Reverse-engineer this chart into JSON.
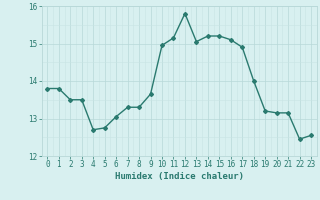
{
  "x": [
    0,
    1,
    2,
    3,
    4,
    5,
    6,
    7,
    8,
    9,
    10,
    11,
    12,
    13,
    14,
    15,
    16,
    17,
    18,
    19,
    20,
    21,
    22,
    23
  ],
  "y": [
    13.8,
    13.8,
    13.5,
    13.5,
    12.7,
    12.75,
    13.05,
    13.3,
    13.3,
    13.65,
    14.95,
    15.15,
    15.8,
    15.05,
    15.2,
    15.2,
    15.1,
    14.9,
    14.0,
    13.2,
    13.15,
    13.15,
    12.45,
    12.55
  ],
  "line_color": "#2a7a6f",
  "marker": "D",
  "marker_size": 2,
  "bg_color": "#d8f0f0",
  "grid_color_major": "#b8d8d8",
  "grid_color_minor": "#c8e4e4",
  "xlabel": "Humidex (Indice chaleur)",
  "ylim": [
    12,
    16
  ],
  "xlim": [
    -0.5,
    23.5
  ],
  "yticks": [
    12,
    13,
    14,
    15,
    16
  ],
  "xticks": [
    0,
    1,
    2,
    3,
    4,
    5,
    6,
    7,
    8,
    9,
    10,
    11,
    12,
    13,
    14,
    15,
    16,
    17,
    18,
    19,
    20,
    21,
    22,
    23
  ],
  "font_color": "#2a7a6f",
  "linewidth": 1.0
}
